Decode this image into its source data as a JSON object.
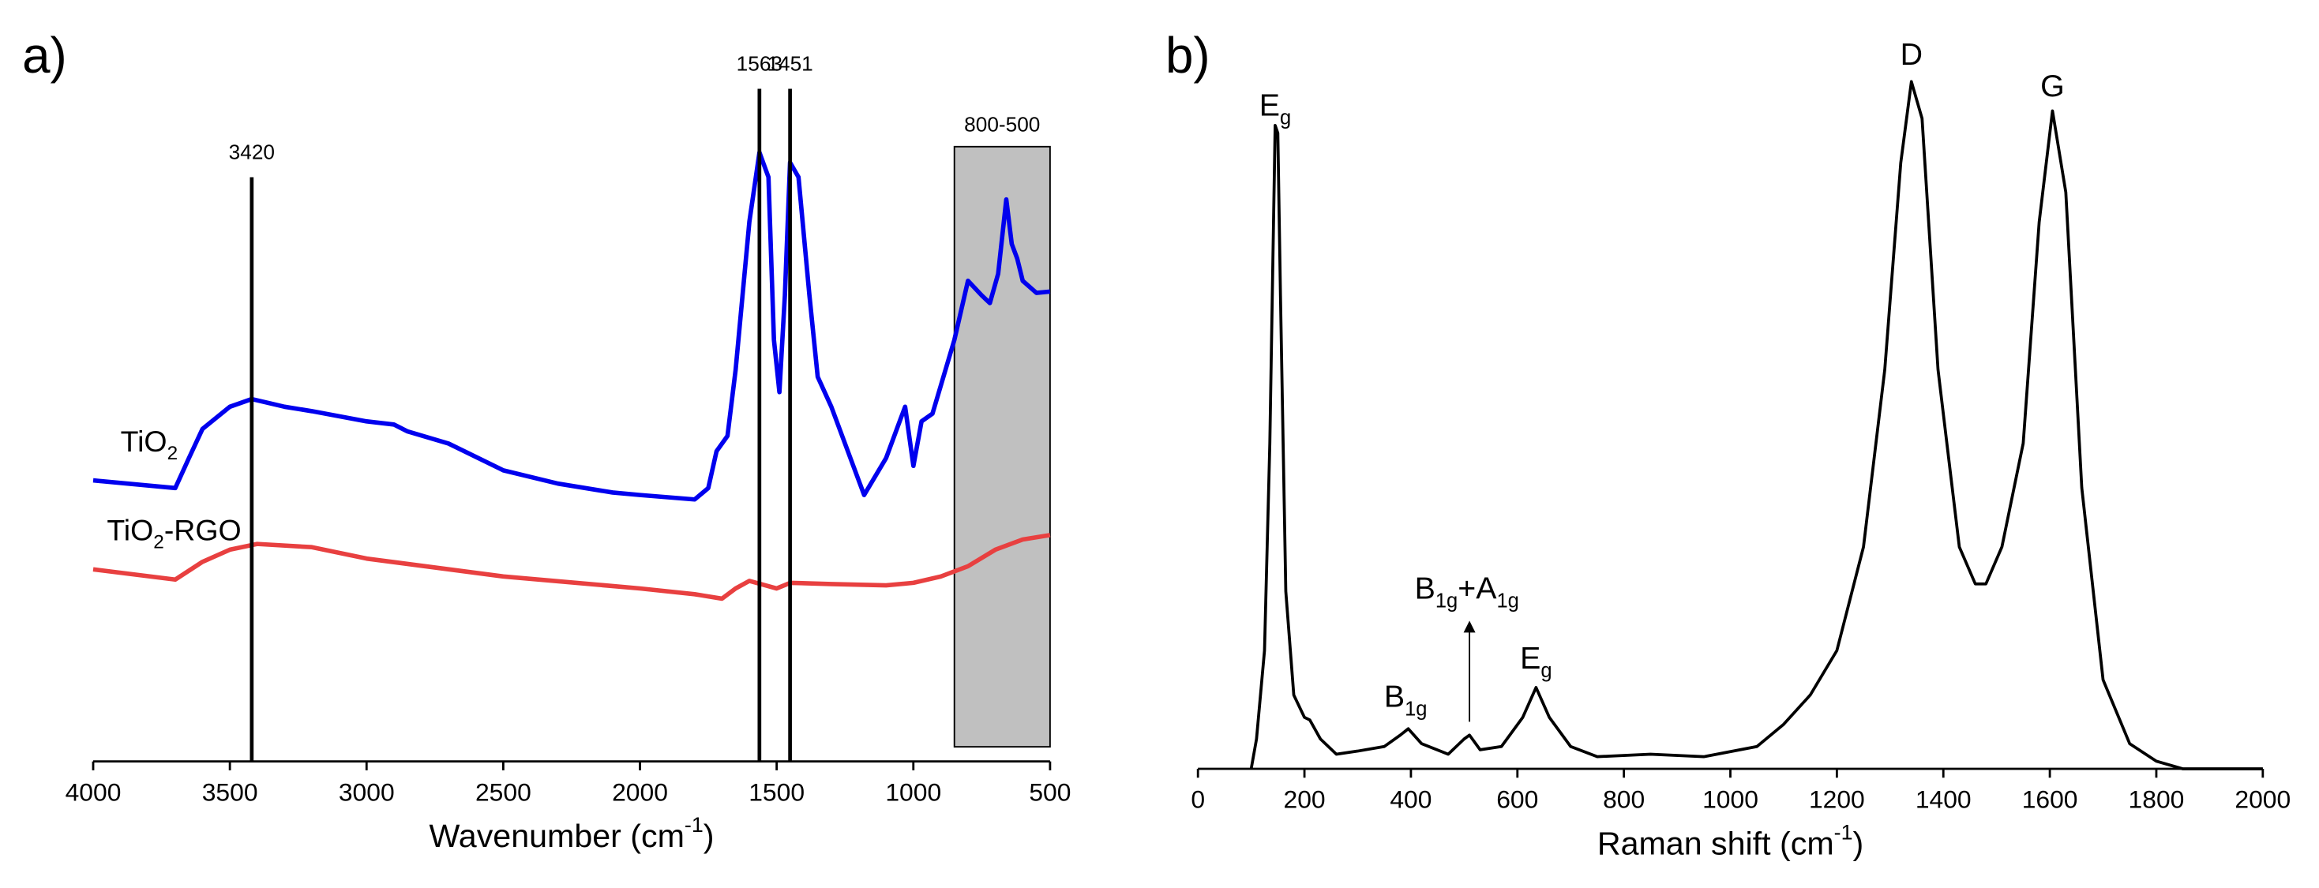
{
  "chart_data": [
    {
      "type": "line",
      "panel_label": "a)",
      "x_label": [
        {
          "text": "Wavenumber (cm"
        },
        {
          "text": "-1",
          "sup": true
        },
        {
          "text": ")"
        }
      ],
      "xlim": [
        4000,
        500
      ],
      "xticks": [
        4000,
        3500,
        3000,
        2500,
        2000,
        1500,
        1000,
        500
      ],
      "ylim": [
        0,
        110
      ],
      "series": [
        {
          "name": [
            {
              "text": "TiO"
            },
            {
              "text": "2",
              "sub": true
            }
          ],
          "label_at": [
            3900,
            50
          ],
          "color": "#0000ee",
          "x": [
            4000,
            3700,
            3650,
            3600,
            3500,
            3420,
            3300,
            3200,
            3000,
            2900,
            2850,
            2700,
            2500,
            2300,
            2100,
            2000,
            1800,
            1750,
            1720,
            1680,
            1650,
            1600,
            1563,
            1530,
            1510,
            1490,
            1470,
            1451,
            1420,
            1380,
            1350,
            1300,
            1200,
            1180,
            1100,
            1050,
            1030,
            1000,
            970,
            930,
            850,
            800,
            750,
            720,
            690,
            660,
            640,
            620,
            600,
            550,
            500
          ],
          "values": [
            44.2,
            43.0,
            47.7,
            52.3,
            55.8,
            57.0,
            55.8,
            55.1,
            53.5,
            53,
            51.9,
            50,
            45.8,
            43.7,
            42.3,
            41.9,
            41.2,
            43,
            48.8,
            51.2,
            61.6,
            84.9,
            95.8,
            91.9,
            66.3,
            58.1,
            73.3,
            94.2,
            91.9,
            73.3,
            60.5,
            55.8,
            44.2,
            41.9,
            47.7,
            53.5,
            55.8,
            46.5,
            53.5,
            54.7,
            66.3,
            75.6,
            73.3,
            72.1,
            76.7,
            88.4,
            81.4,
            79.1,
            75.6,
            73.7,
            73.9
          ]
        },
        {
          "name": [
            {
              "text": "TiO"
            },
            {
              "text": "2",
              "sub": true
            },
            {
              "text": "-RGO"
            }
          ],
          "label_at": [
            3950,
            36
          ],
          "color": "#e84040",
          "x": [
            4000,
            3700,
            3600,
            3500,
            3400,
            3200,
            3000,
            2500,
            2000,
            1800,
            1700,
            1650,
            1600,
            1500,
            1450,
            1300,
            1100,
            1000,
            900,
            800,
            700,
            600,
            500
          ],
          "values": [
            30.2,
            28.6,
            31.4,
            33.3,
            34.2,
            33.7,
            31.9,
            29.1,
            27.2,
            26.3,
            25.6,
            27.2,
            28.4,
            27.2,
            28.1,
            27.9,
            27.7,
            28.1,
            29.1,
            30.7,
            33.3,
            34.9,
            35.6
          ]
        }
      ],
      "vlines": [
        {
          "x": 3420,
          "y": 91.9
        },
        {
          "x": 1563,
          "y": 105.8
        },
        {
          "x": 1451,
          "y": 105.8
        }
      ],
      "box": {
        "x": [
          850,
          500
        ],
        "y": [
          2.3,
          96.7
        ],
        "label": "800-500",
        "color": "#c0c0c0"
      }
    },
    {
      "type": "line",
      "panel_label": "b)",
      "x_label": [
        {
          "text": "Raman shift (cm"
        },
        {
          "text": "-1",
          "sup": true
        },
        {
          "text": ")"
        }
      ],
      "xlim": [
        0,
        2000
      ],
      "xticks": [
        0,
        200,
        400,
        600,
        800,
        1000,
        1200,
        1400,
        1600,
        1800,
        2000
      ],
      "ylim": [
        0,
        110
      ],
      "series": [
        {
          "color": "#000000",
          "x": [
            100,
            110,
            125,
            135,
            142,
            145,
            150,
            155,
            165,
            180,
            200,
            210,
            230,
            260,
            300,
            350,
            380,
            395,
            420,
            470,
            500,
            510,
            530,
            570,
            610,
            635,
            660,
            700,
            750,
            850,
            950,
            1050,
            1100,
            1150,
            1200,
            1250,
            1290,
            1320,
            1340,
            1360,
            1390,
            1430,
            1460,
            1480,
            1510,
            1550,
            1580,
            1605,
            1630,
            1660,
            1700,
            1750,
            1800,
            1850,
            2000
          ],
          "values": [
            0,
            4.7,
            18.6,
            51.2,
            86,
            101.2,
            100,
            74.4,
            27.9,
            11.6,
            8.1,
            7.7,
            4.7,
            2.3,
            2.8,
            3.5,
            5.3,
            6.3,
            3.95,
            2.3,
            4.7,
            5.3,
            3,
            3.5,
            8.1,
            12.8,
            8.1,
            3.5,
            1.9,
            2.3,
            1.9,
            3.5,
            7,
            11.6,
            18.6,
            34.9,
            62.8,
            95.3,
            108.1,
            102.3,
            62.8,
            34.9,
            29.1,
            29.1,
            34.9,
            51.2,
            86,
            103.5,
            90.7,
            44.2,
            14,
            3.95,
            1.2,
            0,
            0
          ]
        }
      ],
      "annotations": [
        {
          "label": [
            {
              "text": "E"
            },
            {
              "text": "g",
              "sub": true
            }
          ],
          "x": 145,
          "y": 104
        },
        {
          "label": [
            {
              "text": "B"
            },
            {
              "text": "1g",
              "sub": true
            }
          ],
          "x": 390,
          "y": 11
        },
        {
          "label": [
            {
              "text": "B"
            },
            {
              "text": "1g",
              "sub": true
            },
            {
              "text": "+A"
            },
            {
              "text": "1g",
              "sub": true
            }
          ],
          "x": 505,
          "y": 28
        },
        {
          "label": [
            {
              "text": "E"
            },
            {
              "text": "g",
              "sub": true
            }
          ],
          "x": 635,
          "y": 17
        },
        {
          "label": [
            {
              "text": "D"
            }
          ],
          "x": 1340,
          "y": 112
        },
        {
          "label": [
            {
              "text": "G"
            }
          ],
          "x": 1605,
          "y": 107
        }
      ],
      "arrows": [
        {
          "x": 510,
          "y": [
            7.4,
            23.3
          ]
        }
      ]
    }
  ]
}
